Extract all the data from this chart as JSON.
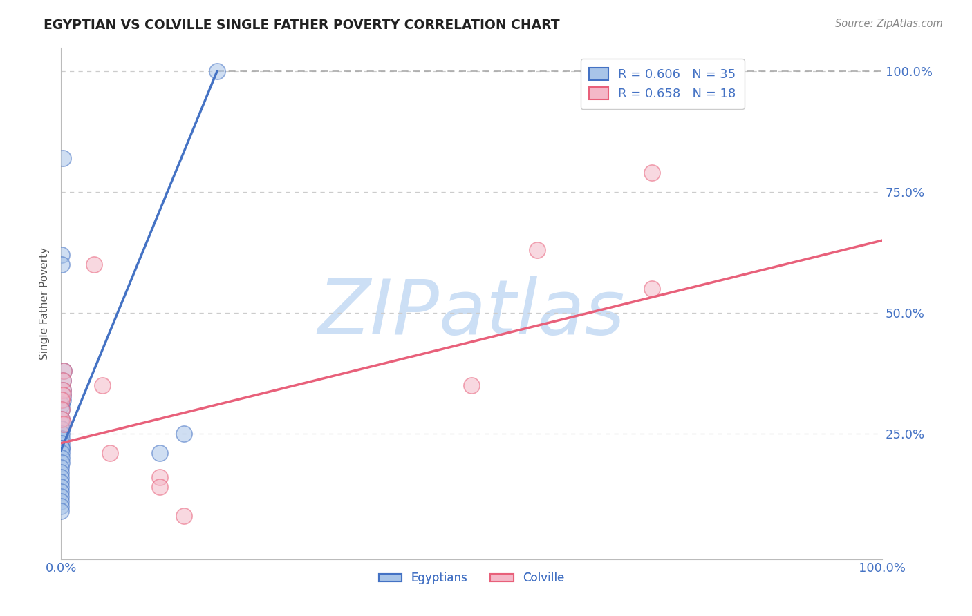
{
  "title": "EGYPTIAN VS COLVILLE SINGLE FATHER POVERTY CORRELATION CHART",
  "source": "Source: ZipAtlas.com",
  "ylabel": "Single Father Poverty",
  "watermark": "ZIPatlas",
  "legend_entries": [
    {
      "label": "R = 0.606   N = 35"
    },
    {
      "label": "R = 0.658   N = 18"
    }
  ],
  "legend_bottom": [
    {
      "label": "Egyptians"
    },
    {
      "label": "Colville"
    }
  ],
  "egyptian_points": [
    [
      0.002,
      0.82
    ],
    [
      0.001,
      0.62
    ],
    [
      0.001,
      0.6
    ],
    [
      0.003,
      0.38
    ],
    [
      0.002,
      0.36
    ],
    [
      0.002,
      0.34
    ],
    [
      0.002,
      0.33
    ],
    [
      0.002,
      0.32
    ],
    [
      0.001,
      0.31
    ],
    [
      0.001,
      0.3
    ],
    [
      0.001,
      0.28
    ],
    [
      0.001,
      0.27
    ],
    [
      0.001,
      0.26
    ],
    [
      0.0008,
      0.26
    ],
    [
      0.0008,
      0.25
    ],
    [
      0.0006,
      0.24
    ],
    [
      0.0006,
      0.23
    ],
    [
      0.0005,
      0.22
    ],
    [
      0.0004,
      0.22
    ],
    [
      0.0004,
      0.21
    ],
    [
      0.0003,
      0.2
    ],
    [
      0.0003,
      0.19
    ],
    [
      0.0002,
      0.18
    ],
    [
      0.0002,
      0.17
    ],
    [
      0.0001,
      0.16
    ],
    [
      0.0001,
      0.15
    ],
    [
      0.0001,
      0.14
    ],
    [
      0.0001,
      0.13
    ],
    [
      0.0001,
      0.12
    ],
    [
      0.0001,
      0.11
    ],
    [
      5e-05,
      0.1
    ],
    [
      5e-05,
      0.09
    ],
    [
      0.15,
      0.25
    ],
    [
      0.12,
      0.21
    ],
    [
      0.19,
      1.0
    ]
  ],
  "colville_points": [
    [
      0.003,
      0.38
    ],
    [
      0.002,
      0.36
    ],
    [
      0.002,
      0.34
    ],
    [
      0.002,
      0.33
    ],
    [
      0.001,
      0.32
    ],
    [
      0.001,
      0.3
    ],
    [
      0.001,
      0.28
    ],
    [
      0.04,
      0.6
    ],
    [
      0.05,
      0.35
    ],
    [
      0.06,
      0.21
    ],
    [
      0.12,
      0.16
    ],
    [
      0.12,
      0.14
    ],
    [
      0.5,
      0.35
    ],
    [
      0.58,
      0.63
    ],
    [
      0.72,
      0.55
    ],
    [
      0.72,
      0.79
    ],
    [
      0.003,
      0.27
    ],
    [
      0.15,
      0.08
    ]
  ],
  "blue_line_x": [
    0.0,
    0.19
  ],
  "blue_line_y": [
    0.215,
    1.0
  ],
  "pink_line_x": [
    0.0,
    1.0
  ],
  "pink_line_y": [
    0.23,
    0.65
  ],
  "dashed_line_x": [
    0.19,
    1.0
  ],
  "dashed_line_y": [
    1.0,
    1.0
  ],
  "blue_color": "#4472c4",
  "pink_color": "#e8607a",
  "blue_fill": "#a8c4e8",
  "pink_fill": "#f4b8c8",
  "title_color": "#222222",
  "source_color": "#888888",
  "axis_label_color": "#4472c4",
  "grid_color": "#cccccc",
  "watermark_color": "#ccdff5",
  "xlim": [
    0.0,
    1.0
  ],
  "ylim": [
    -0.01,
    1.05
  ],
  "ytick_positions": [
    0.25,
    0.5,
    0.75,
    1.0
  ],
  "ytick_labels": [
    "25.0%",
    "50.0%",
    "75.0%",
    "100.0%"
  ],
  "xtick_positions": [
    0.0,
    0.25,
    0.5,
    0.75,
    1.0
  ],
  "xtick_labels": [
    "0.0%",
    "",
    "",
    "",
    "100.0%"
  ]
}
